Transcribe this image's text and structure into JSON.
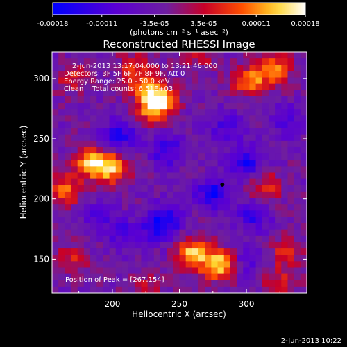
{
  "chart_data": {
    "type": "heatmap",
    "title": "Reconstructed RHESSI Image",
    "xlabel": "Heliocentric X (arcsec)",
    "ylabel": "Heliocentric Y (arcsec)",
    "xlim": [
      155,
      345
    ],
    "ylim": [
      122,
      322
    ],
    "x_ticks": [
      200,
      250,
      300
    ],
    "y_ticks": [
      150,
      200,
      250,
      300
    ],
    "colorbar": {
      "min": -0.00018,
      "max": 0.00018,
      "tick_labels": [
        "-0.00018",
        "-0.00011",
        "-3.5e-05",
        "3.5e-05",
        "0.00011",
        "0.00018"
      ],
      "unit_label": "(photons cm⁻² s⁻¹ asec⁻²)"
    },
    "info_lines": [
      "2-Jun-2013 13:17:04.000 to 13:21:46.000",
      "Detectors: 3F 5F 6F 7F 8F 9F, Att 0",
      "Energy Range: 25.0 - 50.0 keV",
      "Clean    Total counts: 6.51E+03"
    ],
    "peak_label": "Position of Peak = [267,154]",
    "marker": {
      "x": 282,
      "y": 212
    },
    "bright_regions": [
      {
        "x": 280,
        "y": 145,
        "value": 0.00018
      },
      {
        "x": 260,
        "y": 155,
        "value": 0.00016
      },
      {
        "x": 185,
        "y": 230,
        "value": 0.00016
      },
      {
        "x": 200,
        "y": 225,
        "value": 0.00014
      },
      {
        "x": 165,
        "y": 208,
        "value": 0.00012
      },
      {
        "x": 235,
        "y": 282,
        "value": 0.00013
      },
      {
        "x": 230,
        "y": 275,
        "value": 0.00011
      },
      {
        "x": 320,
        "y": 308,
        "value": 0.00014
      },
      {
        "x": 302,
        "y": 298,
        "value": 0.00012
      },
      {
        "x": 225,
        "y": 295,
        "value": 0.00011
      },
      {
        "x": 315,
        "y": 210,
        "value": 9e-05
      },
      {
        "x": 330,
        "y": 157,
        "value": 9e-05
      },
      {
        "x": 325,
        "y": 130,
        "value": 8e-05
      },
      {
        "x": 225,
        "y": 128,
        "value": 6e-05
      },
      {
        "x": 170,
        "y": 150,
        "value": 7e-05
      },
      {
        "x": 170,
        "y": 300,
        "value": 8e-05
      },
      {
        "x": 215,
        "y": 310,
        "value": 7e-05
      },
      {
        "x": 265,
        "y": 320,
        "value": 7e-05
      }
    ],
    "dark_regions": [
      {
        "x": 240,
        "y": 240,
        "value": -0.0001
      },
      {
        "x": 205,
        "y": 253,
        "value": -0.00011
      },
      {
        "x": 275,
        "y": 205,
        "value": -0.00013
      },
      {
        "x": 300,
        "y": 230,
        "value": -0.00012
      },
      {
        "x": 240,
        "y": 185,
        "value": -9e-05
      },
      {
        "x": 235,
        "y": 175,
        "value": -9e-05
      },
      {
        "x": 210,
        "y": 170,
        "value": -8e-05
      },
      {
        "x": 305,
        "y": 185,
        "value": -9e-05
      },
      {
        "x": 285,
        "y": 260,
        "value": -8e-05
      },
      {
        "x": 300,
        "y": 148,
        "value": -7e-05
      },
      {
        "x": 190,
        "y": 185,
        "value": -6e-05
      },
      {
        "x": 330,
        "y": 265,
        "value": -8e-05
      }
    ],
    "timestamp": "2-Jun-2013 10:22"
  },
  "colors": {
    "background": "#000000",
    "text": "#ffffff"
  }
}
